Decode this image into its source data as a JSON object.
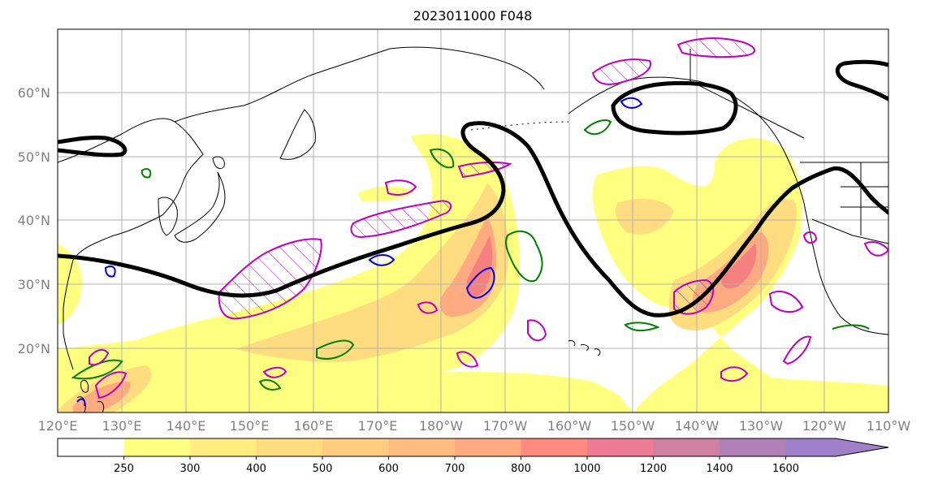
{
  "title": "2023011000 F048",
  "map": {
    "lon_labels": [
      "120°E",
      "130°E",
      "140°E",
      "150°E",
      "160°E",
      "170°E",
      "180°W",
      "170°W",
      "160°W",
      "150°W",
      "140°W",
      "130°W",
      "120°W",
      "110°W"
    ],
    "lat_labels": [
      "60°N",
      "50°N",
      "40°N",
      "30°N",
      "20°N"
    ]
  },
  "colorbar": {
    "labels": [
      "250",
      "300",
      "400",
      "500",
      "600",
      "700",
      "800",
      "1000",
      "1200",
      "1400",
      "1600"
    ],
    "colors": [
      "#ffffff",
      "#ffff80",
      "#ffed80",
      "#ffdc80",
      "#ffcc80",
      "#ffbb80",
      "#ffaa80",
      "#ff8a80",
      "#ee7a95",
      "#d080a0",
      "#b080b8",
      "#a080c8"
    ]
  }
}
